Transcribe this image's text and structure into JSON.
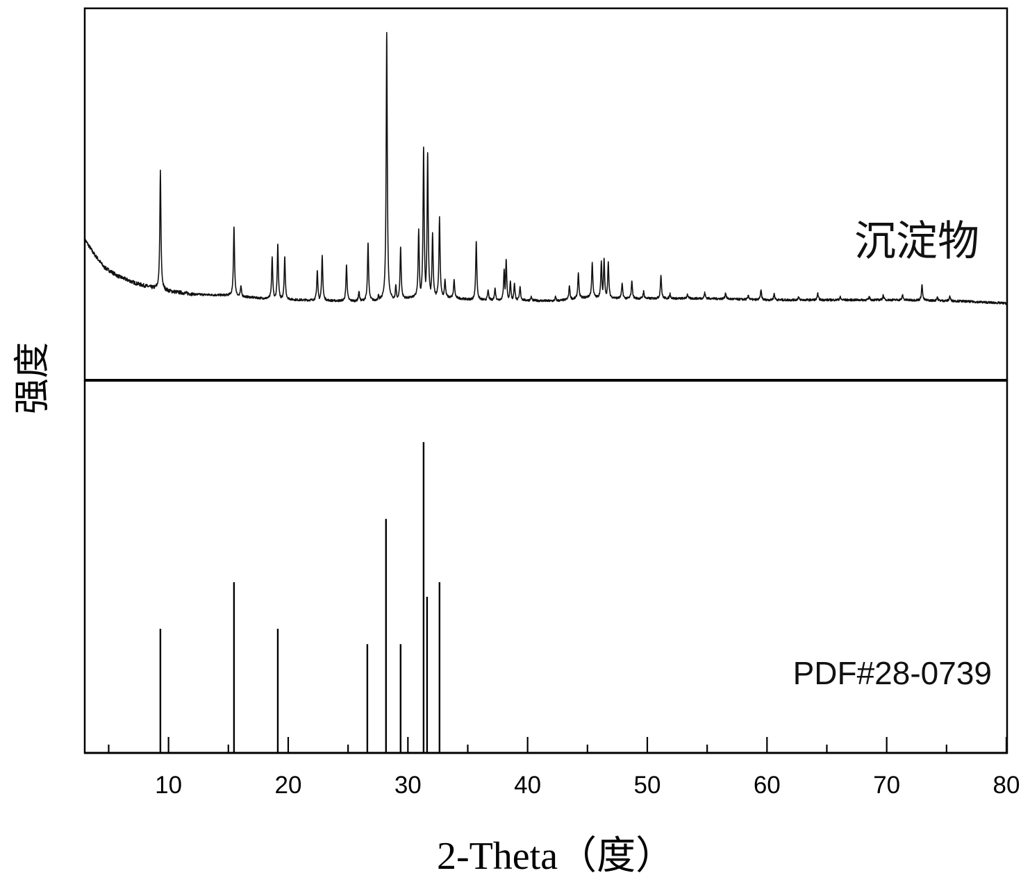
{
  "chart_data": {
    "type": "line",
    "xlabel": "2-Theta（度）",
    "ylabel": "强度",
    "xlim": [
      3,
      80
    ],
    "x_major_ticks": [
      10,
      20,
      30,
      40,
      50,
      60,
      70,
      80
    ],
    "x_tick_labels": [
      "10",
      "20",
      "30",
      "40",
      "50",
      "60",
      "70",
      "80"
    ],
    "x_minor_ticks": [
      5,
      15,
      25,
      35,
      45,
      55,
      65,
      75
    ],
    "grid": false,
    "colors": {
      "line": "#111111",
      "frame": "#000000"
    },
    "panels": [
      {
        "name": "沉淀物",
        "type": "line",
        "ylim": [
          0,
          100
        ],
        "background": {
          "x": [
            3.0,
            3.75,
            4.62,
            5.78,
            7.23,
            8.68,
            10.1,
            12.2,
            15.1,
            18.0,
            20.9,
            24.9,
            28.4,
            31.9,
            35.4,
            38.8,
            42.3,
            45.2,
            48.1,
            51.6,
            55.1,
            59.7,
            65.5,
            71.3,
            76.0,
            80.0
          ],
          "y": [
            37.9,
            34.1,
            30.4,
            28.0,
            26.1,
            24.8,
            23.9,
            23.1,
            22.8,
            22.0,
            21.6,
            21.3,
            21.5,
            22.9,
            21.6,
            21.6,
            21.3,
            22.4,
            22.0,
            22.0,
            22.0,
            21.6,
            21.6,
            21.6,
            21.3,
            20.7
          ]
        },
        "peaks": {
          "x": [
            9.32,
            15.47,
            16.05,
            18.66,
            19.13,
            19.71,
            22.43,
            22.84,
            24.87,
            25.91,
            26.67,
            27.54,
            28.23,
            28.99,
            29.39,
            30.9,
            31.31,
            31.65,
            32.06,
            32.64,
            33.1,
            33.86,
            35.71,
            36.7,
            37.28,
            38.04,
            38.21,
            38.56,
            38.9,
            39.37,
            40.3,
            42.33,
            43.49,
            44.24,
            45.4,
            46.16,
            46.39,
            46.74,
            47.9,
            48.71,
            49.69,
            51.14,
            51.9,
            53.35,
            54.8,
            56.54,
            58.45,
            59.5,
            60.6,
            62.63,
            64.25,
            66.11,
            68.55,
            69.71,
            71.33,
            72.95,
            74.23,
            75.27
          ],
          "y": [
            56.5,
            41.2,
            25.4,
            33.2,
            36.6,
            33.2,
            29.5,
            33.6,
            31.0,
            23.9,
            36.9,
            22.9,
            93.5,
            25.7,
            35.8,
            40.7,
            62.7,
            61.2,
            39.7,
            44.0,
            27.2,
            27.1,
            37.3,
            24.3,
            24.8,
            29.9,
            32.5,
            26.7,
            26.1,
            25.2,
            22.4,
            22.4,
            25.4,
            28.9,
            31.7,
            32.1,
            32.8,
            31.9,
            26.1,
            26.7,
            23.9,
            28.2,
            23.3,
            23.1,
            23.5,
            23.5,
            22.8,
            24.3,
            23.3,
            22.4,
            23.3,
            22.4,
            22.4,
            22.9,
            22.9,
            25.7,
            22.4,
            22.6
          ]
        }
      },
      {
        "name": "PDF#28-0739",
        "type": "bar",
        "ylim": [
          0,
          100
        ],
        "x": [
          9.32,
          15.47,
          19.13,
          26.61,
          28.17,
          29.39,
          31.31,
          31.6,
          32.64
        ],
        "y": [
          33.3,
          45.8,
          33.3,
          29.2,
          62.8,
          29.2,
          83.4,
          41.9,
          45.8
        ]
      }
    ]
  }
}
